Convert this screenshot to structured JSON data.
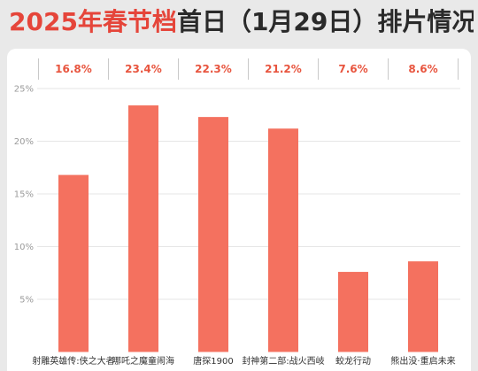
{
  "colors": {
    "page_background": "#e9e9e9",
    "card_background": "#ffffff",
    "title_accent": "#e5453a",
    "title_text": "#2a2a2a",
    "bar": "#f4715f",
    "data_label": "#e8553f",
    "axis_label": "#9a9a9a",
    "category_label": "#333333",
    "gridline": "#e6e6e6",
    "separator": "#c9c9c9"
  },
  "chart_data": {
    "type": "bar",
    "title": {
      "highlight": "2025年春节档",
      "rest": "首日（1月29日）排片情况"
    },
    "categories": [
      "射雕英雄传:侠之大者",
      "哪吒之魔童闹海",
      "唐探1900",
      "封神第二部:战火西岐",
      "蛟龙行动",
      "熊出没·重启未来"
    ],
    "values": [
      16.8,
      23.4,
      22.3,
      21.2,
      7.6,
      8.6
    ],
    "data_labels": [
      "16.8%",
      "23.4%",
      "22.3%",
      "21.2%",
      "7.6%",
      "8.6%"
    ],
    "xlabel": "",
    "ylabel": "",
    "ylim": [
      0,
      25
    ],
    "yticks": [
      5,
      10,
      15,
      20,
      25
    ],
    "ytick_labels": [
      "5%",
      "10%",
      "15%",
      "20%",
      "25%"
    ],
    "grid": true,
    "legend": "none"
  }
}
